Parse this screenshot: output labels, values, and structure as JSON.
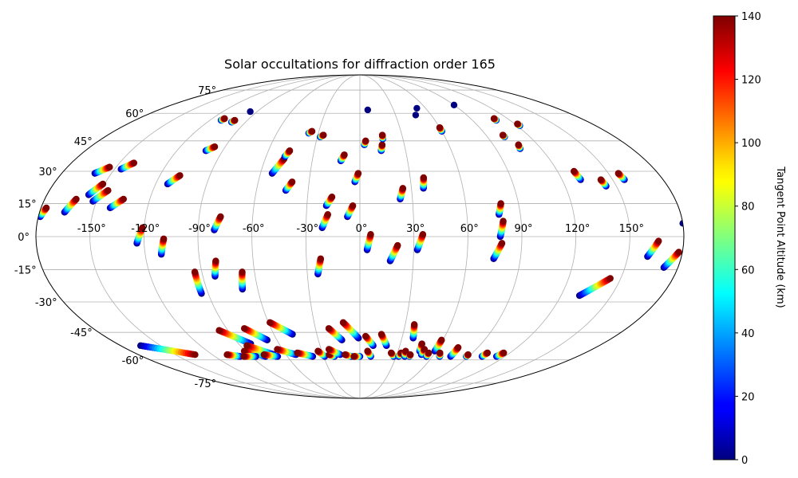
{
  "chart_data": {
    "type": "scatter",
    "projection": "mollweide",
    "title": "Solar occultations for diffraction order 165",
    "grid": true,
    "xaxis": {
      "range": [
        -180,
        180
      ],
      "ticks": [
        -150,
        -120,
        -90,
        -60,
        -30,
        0,
        30,
        60,
        90,
        120,
        150
      ],
      "tick_labels": [
        "-150°",
        "-120°",
        "-90°",
        "-60°",
        "-30°",
        "0°",
        "30°",
        "60°",
        "90°",
        "120°",
        "150°"
      ]
    },
    "yaxis": {
      "range": [
        -90,
        90
      ],
      "ticks": [
        -75,
        -60,
        -45,
        -30,
        -15,
        0,
        15,
        30,
        45,
        60,
        75
      ],
      "tick_labels": [
        "-75°",
        "-60°",
        "-45°",
        "-30°",
        "-15°",
        "0°",
        "15°",
        "30°",
        "45°",
        "60°",
        "75°"
      ]
    },
    "colorbar": {
      "label": "Tangent Point Altitude (km)",
      "colormap": "jet",
      "range": [
        0,
        140
      ],
      "ticks": [
        0,
        20,
        40,
        60,
        80,
        100,
        120,
        140
      ],
      "tick_labels": [
        "0",
        "20",
        "40",
        "60",
        "80",
        "100",
        "120",
        "140"
      ]
    },
    "occultations": [
      {
        "lon0": -179,
        "lat0": 9,
        "lon1": -177,
        "lat1": 13,
        "alt0": 0,
        "alt1": 140
      },
      {
        "lon0": -166,
        "lat0": 11,
        "lon1": -162,
        "lat1": 17,
        "alt0": 0,
        "alt1": 140
      },
      {
        "lon0": -156,
        "lat0": 19,
        "lon1": -151,
        "lat1": 24,
        "alt0": 0,
        "alt1": 140
      },
      {
        "lon0": -160,
        "lat0": 29,
        "lon1": -154,
        "lat1": 32,
        "alt0": 0,
        "alt1": 140
      },
      {
        "lon0": -152,
        "lat0": 16,
        "lon1": -146,
        "lat1": 21,
        "alt0": 0,
        "alt1": 140
      },
      {
        "lon0": -141,
        "lat0": 13,
        "lon1": -135,
        "lat1": 17,
        "alt0": 0,
        "alt1": 140
      },
      {
        "lon0": -146,
        "lat0": 31,
        "lon1": -141,
        "lat1": 34,
        "alt0": 0,
        "alt1": 140
      },
      {
        "lon0": -124,
        "lat0": -3,
        "lon1": -121,
        "lat1": 4,
        "alt0": 0,
        "alt1": 140
      },
      {
        "lon0": -111,
        "lat0": -8,
        "lon1": -109,
        "lat1": -1,
        "alt0": 0,
        "alt1": 140
      },
      {
        "lon0": -113,
        "lat0": 24,
        "lon1": -108,
        "lat1": 28,
        "alt0": 0,
        "alt1": 140
      },
      {
        "lon0": -101,
        "lat0": 40,
        "lon1": -97,
        "lat1": 42,
        "alt0": 0,
        "alt1": 140
      },
      {
        "lon0": -81,
        "lat0": 3,
        "lon1": -78,
        "lat1": 9,
        "alt0": 0,
        "alt1": 140
      },
      {
        "lon0": -83,
        "lat0": -18,
        "lon1": -81,
        "lat1": -11,
        "alt0": 0,
        "alt1": 140
      },
      {
        "lon0": -94,
        "lat0": -26,
        "lon1": -94,
        "lat1": -16,
        "alt0": 0,
        "alt1": 140
      },
      {
        "lon0": -69,
        "lat0": -24,
        "lon1": -67,
        "lat1": -16,
        "alt0": 0,
        "alt1": 140
      },
      {
        "lon0": -53,
        "lat0": 29,
        "lon1": -48,
        "lat1": 36,
        "alt0": 0,
        "alt1": 140
      },
      {
        "lon0": -48,
        "lat0": 37,
        "lon1": -46,
        "lat1": 40,
        "alt0": 0,
        "alt1": 140
      },
      {
        "lon0": -43,
        "lat0": 21,
        "lon1": -40,
        "lat1": 25,
        "alt0": 0,
        "alt1": 140
      },
      {
        "lon0": -21,
        "lat0": 4,
        "lon1": -18,
        "lat1": 10,
        "alt0": 0,
        "alt1": 140
      },
      {
        "lon0": -19,
        "lat0": 14,
        "lon1": -16,
        "lat1": 18,
        "alt0": 0,
        "alt1": 140
      },
      {
        "lon0": -24,
        "lat0": -17,
        "lon1": -22,
        "lat1": -10,
        "alt0": 0,
        "alt1": 140
      },
      {
        "lon0": -12,
        "lat0": 35,
        "lon1": -10,
        "lat1": 38,
        "alt0": 0,
        "alt1": 140
      },
      {
        "lon0": -7,
        "lat0": 9,
        "lon1": -4,
        "lat1": 14,
        "alt0": 0,
        "alt1": 140
      },
      {
        "lon0": -3,
        "lat0": 25,
        "lon1": -1,
        "lat1": 29,
        "alt0": 0,
        "alt1": 140
      },
      {
        "lon0": 4,
        "lat0": -6,
        "lon1": 6,
        "lat1": 1,
        "alt0": 0,
        "alt1": 140
      },
      {
        "lon0": 3,
        "lat0": 43,
        "lon1": 4,
        "lat1": 45,
        "alt0": 0,
        "alt1": 140
      },
      {
        "lon0": 14,
        "lat0": 40,
        "lon1": 15,
        "lat1": 43,
        "alt0": 0,
        "alt1": 140
      },
      {
        "lon0": 16,
        "lat0": 46,
        "lon1": 16,
        "lat1": 48,
        "alt0": 0,
        "alt1": 140
      },
      {
        "lon0": 17,
        "lat0": -11,
        "lon1": 21,
        "lat1": -4,
        "alt0": 0,
        "alt1": 140
      },
      {
        "lon0": 23,
        "lat0": 17,
        "lon1": 25,
        "lat1": 22,
        "alt0": 0,
        "alt1": 140
      },
      {
        "lon0": 32,
        "lat0": -6,
        "lon1": 35,
        "lat1": 1,
        "alt0": 0,
        "alt1": 140
      },
      {
        "lon0": 37,
        "lat0": 22,
        "lon1": 38,
        "lat1": 27,
        "alt0": 0,
        "alt1": 140
      },
      {
        "lon0": -37,
        "lat0": 49,
        "lon1": -35,
        "lat1": 50,
        "alt0": 0,
        "alt1": 140
      },
      {
        "lon0": -28,
        "lat0": 47,
        "lon1": -26,
        "lat1": 48,
        "alt0": 0,
        "alt1": 140
      },
      {
        "lon0": -101,
        "lat0": 55,
        "lon1": -100,
        "lat1": 56,
        "alt0": 0,
        "alt1": 140
      },
      {
        "lon0": -111,
        "lat0": 56,
        "lon1": -110,
        "lat1": 57,
        "alt0": 0,
        "alt1": 140
      },
      {
        "lon0": 60,
        "lat0": 50,
        "lon1": 60,
        "lat1": 52,
        "alt0": 0,
        "alt1": 140
      },
      {
        "lon0": 102,
        "lat0": 47,
        "lon1": 102,
        "lat1": 48,
        "alt0": 0,
        "alt1": 140
      },
      {
        "lon0": 106,
        "lat0": 41,
        "lon1": 107,
        "lat1": 43,
        "alt0": 0,
        "alt1": 140
      },
      {
        "lon0": 109,
        "lat0": 56,
        "lon1": 109,
        "lat1": 57,
        "alt0": 0,
        "alt1": 140
      },
      {
        "lon0": 122,
        "lat0": 53,
        "lon1": 122,
        "lat1": 54,
        "alt0": 0,
        "alt1": 140
      },
      {
        "lon0": 78,
        "lat0": 10,
        "lon1": 80,
        "lat1": 15,
        "alt0": 0,
        "alt1": 140
      },
      {
        "lon0": 78,
        "lat0": 0,
        "lon1": 80,
        "lat1": 7,
        "alt0": 0,
        "alt1": 140
      },
      {
        "lon0": 75,
        "lat0": -10,
        "lon1": 79,
        "lat1": -3,
        "alt0": 0,
        "alt1": 140
      },
      {
        "lon0": 131,
        "lat0": 26,
        "lon1": 130,
        "lat1": 30,
        "alt0": 0,
        "alt1": 140
      },
      {
        "lon0": 144,
        "lat0": 23,
        "lon1": 143,
        "lat1": 26,
        "alt0": 0,
        "alt1": 140
      },
      {
        "lon0": 157,
        "lat0": 26,
        "lon1": 156,
        "lat1": 29,
        "alt0": 0,
        "alt1": 140
      },
      {
        "lon0": 131,
        "lat0": -27,
        "lon1": 144,
        "lat1": -19,
        "alt0": 0,
        "alt1": 140
      },
      {
        "lon0": 161,
        "lat0": -9,
        "lon1": 166,
        "lat1": -2,
        "alt0": 0,
        "alt1": 140
      },
      {
        "lon0": 172,
        "lat0": -14,
        "lon1": 178,
        "lat1": -7,
        "alt0": 0,
        "alt1": 140
      },
      {
        "lon0": -165,
        "lat0": -52,
        "lon1": -134,
        "lat1": -57,
        "alt0": 0,
        "alt1": 140
      },
      {
        "lon0": -99,
        "lat0": -58,
        "lon1": -108,
        "lat1": -57,
        "alt0": 0,
        "alt1": 140
      },
      {
        "lon0": -81,
        "lat0": -51,
        "lon1": -96,
        "lat1": -44,
        "alt0": 0,
        "alt1": 140
      },
      {
        "lon0": -78,
        "lat0": -58,
        "lon1": -91,
        "lat1": -55,
        "alt0": 0,
        "alt1": 140
      },
      {
        "lon0": -86,
        "lat0": -58,
        "lon1": -96,
        "lat1": -58,
        "alt0": 0,
        "alt1": 140
      },
      {
        "lon0": -67,
        "lat0": -49,
        "lon1": -78,
        "lat1": -43,
        "alt0": 0,
        "alt1": 140
      },
      {
        "lon0": -70,
        "lat0": -57,
        "lon1": -85,
        "lat1": -52,
        "alt0": 0,
        "alt1": 140
      },
      {
        "lon0": -68,
        "lat0": -58,
        "lon1": -78,
        "lat1": -57,
        "alt0": 0,
        "alt1": 140
      },
      {
        "lon0": -47,
        "lat0": -46,
        "lon1": -59,
        "lat1": -40,
        "alt0": 0,
        "alt1": 140
      },
      {
        "lon0": -52,
        "lat0": -57,
        "lon1": -64,
        "lat1": -54,
        "alt0": 0,
        "alt1": 140
      },
      {
        "lon0": -39,
        "lat0": -58,
        "lon1": -50,
        "lat1": -56,
        "alt0": 0,
        "alt1": 140
      },
      {
        "lon0": -29,
        "lat0": -58,
        "lon1": -33,
        "lat1": -55,
        "alt0": 0,
        "alt1": 140
      },
      {
        "lon0": -21,
        "lat0": -58,
        "lon1": -25,
        "lat1": -57,
        "alt0": 0,
        "alt1": 140
      },
      {
        "lon0": -13,
        "lat0": -49,
        "lon1": -21,
        "lat1": -43,
        "alt0": 0,
        "alt1": 140
      },
      {
        "lon0": -16,
        "lat0": -57,
        "lon1": -24,
        "lat1": -54,
        "alt0": 0,
        "alt1": 140
      },
      {
        "lon0": -1,
        "lat0": -48,
        "lon1": -11,
        "lat1": -40,
        "alt0": 0,
        "alt1": 140
      },
      {
        "lon0": -7,
        "lat0": -58,
        "lon1": -12,
        "lat1": -57,
        "alt0": 0,
        "alt1": 140
      },
      {
        "lon0": 0,
        "lat0": -58,
        "lon1": -5,
        "lat1": -58,
        "alt0": 0,
        "alt1": 140
      },
      {
        "lon0": 10,
        "lat0": -52,
        "lon1": 4,
        "lat1": -47,
        "alt0": 0,
        "alt1": 140
      },
      {
        "lon0": 9,
        "lat0": -58,
        "lon1": 6,
        "lat1": -55,
        "alt0": 0,
        "alt1": 140
      },
      {
        "lon0": 20,
        "lat0": -52,
        "lon1": 15,
        "lat1": -46,
        "alt0": 0,
        "alt1": 140
      },
      {
        "lon0": 28,
        "lat0": -58,
        "lon1": 25,
        "lat1": -56,
        "alt0": 0,
        "alt1": 140
      },
      {
        "lon0": 32,
        "lat0": -58,
        "lon1": 33,
        "lat1": -56,
        "alt0": 0,
        "alt1": 140
      },
      {
        "lon0": 38,
        "lat0": -48,
        "lon1": 36,
        "lat1": -41,
        "alt0": 0,
        "alt1": 140
      },
      {
        "lon0": 37,
        "lat0": -58,
        "lon1": 36,
        "lat1": -55,
        "alt0": 0,
        "alt1": 140
      },
      {
        "lon0": 41,
        "lat0": -58,
        "lon1": 41,
        "lat1": -57,
        "alt0": 0,
        "alt1": 140
      },
      {
        "lon0": 47,
        "lat0": -55,
        "lon1": 46,
        "lat1": -51,
        "alt0": 0,
        "alt1": 140
      },
      {
        "lon0": 50,
        "lat0": -57,
        "lon1": 50,
        "lat1": -54,
        "alt0": 0,
        "alt1": 140
      },
      {
        "lon0": 55,
        "lat0": -58,
        "lon1": 55,
        "lat1": -56,
        "alt0": 0,
        "alt1": 140
      },
      {
        "lon0": 59,
        "lat0": -55,
        "lon1": 59,
        "lat1": -49,
        "alt0": 0,
        "alt1": 140
      },
      {
        "lon0": 66,
        "lat0": -58,
        "lon1": 64,
        "lat1": -56,
        "alt0": 0,
        "alt1": 140
      },
      {
        "lon0": 75,
        "lat0": -58,
        "lon1": 75,
        "lat1": -53,
        "alt0": 0,
        "alt1": 140
      },
      {
        "lon0": 88,
        "lat0": -58,
        "lon1": 88,
        "lat1": -57,
        "alt0": 0,
        "alt1": 140
      },
      {
        "lon0": 101,
        "lat0": -58,
        "lon1": 102,
        "lat1": -56,
        "alt0": 0,
        "alt1": 140
      },
      {
        "lon0": 113,
        "lat0": -58,
        "lon1": 115,
        "lat1": -56,
        "alt0": 0,
        "alt1": 140
      }
    ],
    "points": [
      {
        "lon": -96,
        "lat": 61,
        "alt": 0
      },
      {
        "lon": 7,
        "lat": 62,
        "alt": 0
      },
      {
        "lon": 52,
        "lat": 63,
        "alt": 0
      },
      {
        "lon": 47,
        "lat": 59,
        "alt": 0
      },
      {
        "lon": 90,
        "lat": 65,
        "alt": 0
      },
      {
        "lon": 180,
        "lat": 6,
        "alt": 0
      }
    ]
  }
}
